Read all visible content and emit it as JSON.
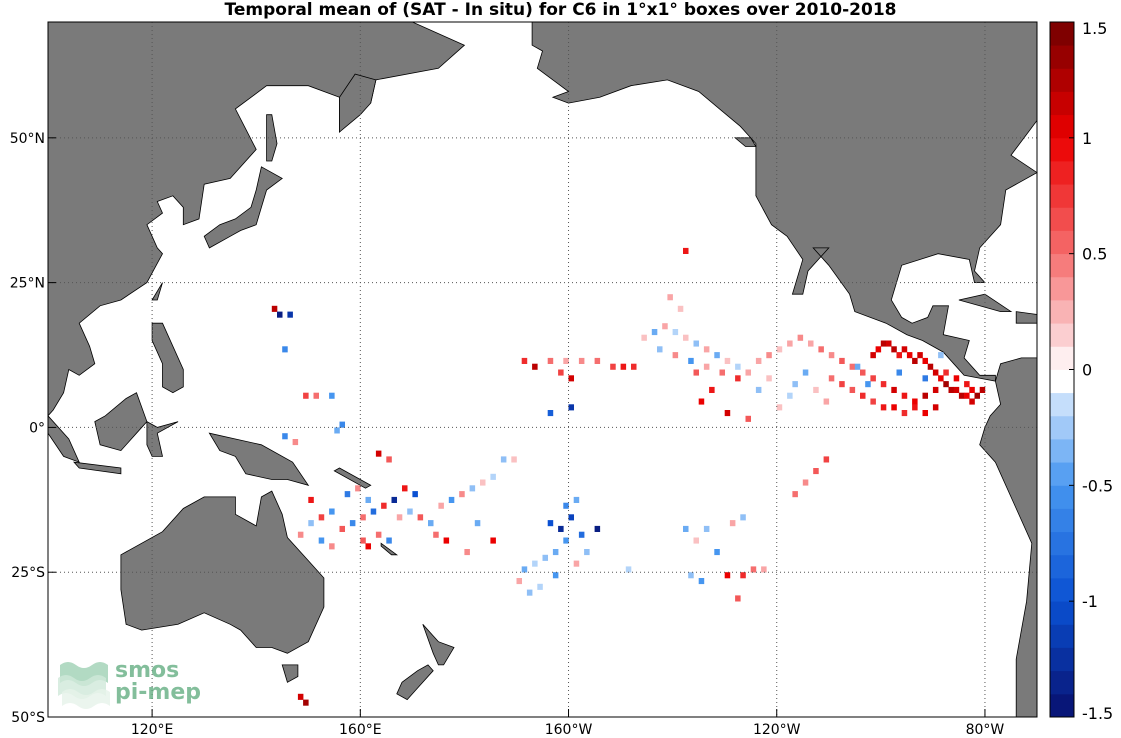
{
  "title": "Temporal mean of (SAT - In situ) for C6 in 1°x1° boxes over 2010-2018",
  "watermark": {
    "line1": "smos",
    "line2": "pi-mep",
    "color": "#5aa97a"
  },
  "colors": {
    "land": "#7a7a7a",
    "ocean": "#ffffff",
    "grid": "#555555"
  },
  "chart_data": {
    "type": "heatmap",
    "title": "Temporal mean of (SAT - In situ) for C6 in 1°x1° boxes over 2010-2018",
    "xlabel": "",
    "ylabel": "",
    "x_ticks": [
      {
        "value": 120,
        "label": "120°E"
      },
      {
        "value": 160,
        "label": "160°E"
      },
      {
        "value": 200,
        "label": "160°W"
      },
      {
        "value": 240,
        "label": "120°W"
      },
      {
        "value": 280,
        "label": "80°W"
      }
    ],
    "y_ticks": [
      {
        "value": 50,
        "label": "50°N"
      },
      {
        "value": 25,
        "label": "25°N"
      },
      {
        "value": 0,
        "label": "0°"
      },
      {
        "value": -25,
        "label": "25°S"
      },
      {
        "value": -50,
        "label": "50°S"
      }
    ],
    "xlim": [
      100,
      290
    ],
    "ylim": [
      -50,
      70
    ],
    "grid": true,
    "colorbar": {
      "vmin": -1.5,
      "vmax": 1.5,
      "step": 0.1,
      "ticks": [
        "1.5",
        "1",
        "0.5",
        "0",
        "-0.5",
        "-1",
        "-1.5"
      ],
      "tick_values": [
        1.5,
        1,
        0.5,
        0,
        -0.5,
        -1,
        -1.5
      ]
    },
    "cells": [
      {
        "lon": 258,
        "lat": 12,
        "v": 1.1
      },
      {
        "lon": 259,
        "lat": 13,
        "v": 1.0
      },
      {
        "lon": 260,
        "lat": 14,
        "v": 1.2
      },
      {
        "lon": 261,
        "lat": 14,
        "v": 1.1
      },
      {
        "lon": 262,
        "lat": 13,
        "v": 1.2
      },
      {
        "lon": 263,
        "lat": 12,
        "v": 0.9
      },
      {
        "lon": 264,
        "lat": 13,
        "v": 1.1
      },
      {
        "lon": 265,
        "lat": 12,
        "v": 1.0
      },
      {
        "lon": 266,
        "lat": 11,
        "v": 1.2
      },
      {
        "lon": 267,
        "lat": 12,
        "v": 1.1
      },
      {
        "lon": 268,
        "lat": 11,
        "v": 1.0
      },
      {
        "lon": 269,
        "lat": 10,
        "v": 1.2
      },
      {
        "lon": 270,
        "lat": 9,
        "v": 1.1
      },
      {
        "lon": 271,
        "lat": 8,
        "v": 1.0
      },
      {
        "lon": 272,
        "lat": 7,
        "v": 1.3
      },
      {
        "lon": 273,
        "lat": 6,
        "v": 1.2
      },
      {
        "lon": 274,
        "lat": 6,
        "v": 1.1
      },
      {
        "lon": 275,
        "lat": 5,
        "v": 1.2
      },
      {
        "lon": 276,
        "lat": 5,
        "v": 1.0
      },
      {
        "lon": 277,
        "lat": 4,
        "v": 1.1
      },
      {
        "lon": 278,
        "lat": 5,
        "v": 1.3
      },
      {
        "lon": 279,
        "lat": 6,
        "v": 1.2
      },
      {
        "lon": 277,
        "lat": 6,
        "v": 1.0
      },
      {
        "lon": 276,
        "lat": 7,
        "v": 0.9
      },
      {
        "lon": 274,
        "lat": 8,
        "v": 1.0
      },
      {
        "lon": 272,
        "lat": 9,
        "v": 0.8
      },
      {
        "lon": 270,
        "lat": 6,
        "v": 1.1
      },
      {
        "lon": 268,
        "lat": 5,
        "v": 1.2
      },
      {
        "lon": 266,
        "lat": 4,
        "v": 1.0
      },
      {
        "lon": 264,
        "lat": 5,
        "v": 0.9
      },
      {
        "lon": 262,
        "lat": 6,
        "v": 1.1
      },
      {
        "lon": 260,
        "lat": 7,
        "v": 0.8
      },
      {
        "lon": 258,
        "lat": 8,
        "v": 0.7
      },
      {
        "lon": 256,
        "lat": 9,
        "v": 0.6
      },
      {
        "lon": 254,
        "lat": 10,
        "v": 0.5
      },
      {
        "lon": 252,
        "lat": 11,
        "v": 0.6
      },
      {
        "lon": 250,
        "lat": 12,
        "v": 0.4
      },
      {
        "lon": 248,
        "lat": 13,
        "v": 0.5
      },
      {
        "lon": 246,
        "lat": 14,
        "v": 0.3
      },
      {
        "lon": 244,
        "lat": 15,
        "v": 0.4
      },
      {
        "lon": 242,
        "lat": 14,
        "v": 0.3
      },
      {
        "lon": 240,
        "lat": 13,
        "v": 0.2
      },
      {
        "lon": 238,
        "lat": 12,
        "v": 0.4
      },
      {
        "lon": 236,
        "lat": 11,
        "v": 0.3
      },
      {
        "lon": 250,
        "lat": 8,
        "v": 0.5
      },
      {
        "lon": 252,
        "lat": 7,
        "v": 0.7
      },
      {
        "lon": 254,
        "lat": 6,
        "v": 0.6
      },
      {
        "lon": 256,
        "lat": 5,
        "v": 0.8
      },
      {
        "lon": 258,
        "lat": 4,
        "v": 0.7
      },
      {
        "lon": 260,
        "lat": 3,
        "v": 0.9
      },
      {
        "lon": 262,
        "lat": 3,
        "v": 1.0
      },
      {
        "lon": 264,
        "lat": 2,
        "v": 0.8
      },
      {
        "lon": 266,
        "lat": 3,
        "v": 0.9
      },
      {
        "lon": 268,
        "lat": 2,
        "v": 1.0
      },
      {
        "lon": 270,
        "lat": 3,
        "v": 1.1
      },
      {
        "lon": 255,
        "lat": 10,
        "v": -0.4
      },
      {
        "lon": 257,
        "lat": 7,
        "v": -0.5
      },
      {
        "lon": 263,
        "lat": 9,
        "v": -0.6
      },
      {
        "lon": 268,
        "lat": 8,
        "v": -0.7
      },
      {
        "lon": 271,
        "lat": 12,
        "v": -0.3
      },
      {
        "lon": 245,
        "lat": 9,
        "v": -0.4
      },
      {
        "lon": 243,
        "lat": 7,
        "v": -0.3
      },
      {
        "lon": 247,
        "lat": 6,
        "v": 0.2
      },
      {
        "lon": 249,
        "lat": 4,
        "v": 0.3
      },
      {
        "lon": 240,
        "lat": 3,
        "v": 0.2
      },
      {
        "lon": 242,
        "lat": 5,
        "v": -0.2
      },
      {
        "lon": 238,
        "lat": 8,
        "v": 0.2
      },
      {
        "lon": 236,
        "lat": 6,
        "v": -0.3
      },
      {
        "lon": 234,
        "lat": 9,
        "v": 0.3
      },
      {
        "lon": 232,
        "lat": 10,
        "v": -0.2
      },
      {
        "lon": 230,
        "lat": 11,
        "v": 0.2
      },
      {
        "lon": 228,
        "lat": 12,
        "v": -0.4
      },
      {
        "lon": 226,
        "lat": 13,
        "v": 0.3
      },
      {
        "lon": 224,
        "lat": 14,
        "v": -0.3
      },
      {
        "lon": 222,
        "lat": 15,
        "v": 0.2
      },
      {
        "lon": 220,
        "lat": 16,
        "v": -0.2
      },
      {
        "lon": 218,
        "lat": 17,
        "v": 0.3
      },
      {
        "lon": 216,
        "lat": 16,
        "v": -0.4
      },
      {
        "lon": 214,
        "lat": 15,
        "v": 0.2
      },
      {
        "lon": 217,
        "lat": 13,
        "v": -0.3
      },
      {
        "lon": 220,
        "lat": 12,
        "v": 0.4
      },
      {
        "lon": 223,
        "lat": 11,
        "v": -0.5
      },
      {
        "lon": 226,
        "lat": 10,
        "v": 0.3
      },
      {
        "lon": 229,
        "lat": 9,
        "v": 0.5
      },
      {
        "lon": 232,
        "lat": 8,
        "v": 0.8
      },
      {
        "lon": 224,
        "lat": 9,
        "v": 0.6
      },
      {
        "lon": 221,
        "lat": 20,
        "v": 0.2
      },
      {
        "lon": 219,
        "lat": 22,
        "v": 0.3
      },
      {
        "lon": 222,
        "lat": 30,
        "v": 0.9
      },
      {
        "lon": 212,
        "lat": 10,
        "v": 0.8
      },
      {
        "lon": 210,
        "lat": 10,
        "v": 0.9
      },
      {
        "lon": 208,
        "lat": 10,
        "v": 0.7
      },
      {
        "lon": 205,
        "lat": 11,
        "v": 0.5
      },
      {
        "lon": 202,
        "lat": 11,
        "v": 0.4
      },
      {
        "lon": 199,
        "lat": 11,
        "v": 0.3
      },
      {
        "lon": 196,
        "lat": 11,
        "v": 0.5
      },
      {
        "lon": 193,
        "lat": 10,
        "v": 1.2
      },
      {
        "lon": 191,
        "lat": 11,
        "v": 0.8
      },
      {
        "lon": 200,
        "lat": 8,
        "v": 1.1
      },
      {
        "lon": 198,
        "lat": 9,
        "v": 0.7
      },
      {
        "lon": 200,
        "lat": 3,
        "v": -1.2
      },
      {
        "lon": 196,
        "lat": 2,
        "v": -0.9
      },
      {
        "lon": 227,
        "lat": 6,
        "v": 0.9
      },
      {
        "lon": 225,
        "lat": 4,
        "v": 1.0
      },
      {
        "lon": 230,
        "lat": 2,
        "v": 1.1
      },
      {
        "lon": 234,
        "lat": 1,
        "v": 0.6
      },
      {
        "lon": 249,
        "lat": -6,
        "v": 0.7
      },
      {
        "lon": 247,
        "lat": -8,
        "v": 0.6
      },
      {
        "lon": 245,
        "lat": -10,
        "v": 0.4
      },
      {
        "lon": 243,
        "lat": -12,
        "v": 0.5
      },
      {
        "lon": 233,
        "lat": -16,
        "v": -0.3
      },
      {
        "lon": 231,
        "lat": -17,
        "v": 0.3
      },
      {
        "lon": 226,
        "lat": -18,
        "v": -0.3
      },
      {
        "lon": 224,
        "lat": -20,
        "v": 0.2
      },
      {
        "lon": 222,
        "lat": -18,
        "v": -0.4
      },
      {
        "lon": 228,
        "lat": -22,
        "v": -0.5
      },
      {
        "lon": 230,
        "lat": -26,
        "v": 1.0
      },
      {
        "lon": 233,
        "lat": -26,
        "v": 0.8
      },
      {
        "lon": 235,
        "lat": -25,
        "v": 0.5
      },
      {
        "lon": 237,
        "lat": -25,
        "v": 0.3
      },
      {
        "lon": 223,
        "lat": -26,
        "v": -0.3
      },
      {
        "lon": 225,
        "lat": -27,
        "v": -0.5
      },
      {
        "lon": 232,
        "lat": -30,
        "v": 0.6
      },
      {
        "lon": 196,
        "lat": -17,
        "v": -1.0
      },
      {
        "lon": 198,
        "lat": -18,
        "v": -1.3
      },
      {
        "lon": 200,
        "lat": -16,
        "v": -1.1
      },
      {
        "lon": 202,
        "lat": -19,
        "v": -0.8
      },
      {
        "lon": 199,
        "lat": -20,
        "v": -0.5
      },
      {
        "lon": 197,
        "lat": -22,
        "v": -0.4
      },
      {
        "lon": 195,
        "lat": -23,
        "v": -0.3
      },
      {
        "lon": 193,
        "lat": -24,
        "v": -0.2
      },
      {
        "lon": 191,
        "lat": -25,
        "v": -0.4
      },
      {
        "lon": 190,
        "lat": -27,
        "v": 0.3
      },
      {
        "lon": 192,
        "lat": -29,
        "v": -0.3
      },
      {
        "lon": 194,
        "lat": -28,
        "v": -0.2
      },
      {
        "lon": 197,
        "lat": -26,
        "v": -0.5
      },
      {
        "lon": 199,
        "lat": -14,
        "v": -0.6
      },
      {
        "lon": 201,
        "lat": -13,
        "v": -0.4
      },
      {
        "lon": 205,
        "lat": -18,
        "v": -1.4
      },
      {
        "lon": 203,
        "lat": -22,
        "v": -0.3
      },
      {
        "lon": 211,
        "lat": -25,
        "v": -0.2
      },
      {
        "lon": 201,
        "lat": -24,
        "v": 0.3
      },
      {
        "lon": 168,
        "lat": -11,
        "v": 0.9
      },
      {
        "lon": 170,
        "lat": -12,
        "v": -1.0
      },
      {
        "lon": 166,
        "lat": -13,
        "v": -1.3
      },
      {
        "lon": 164,
        "lat": -14,
        "v": 0.8
      },
      {
        "lon": 162,
        "lat": -15,
        "v": -0.8
      },
      {
        "lon": 160,
        "lat": -16,
        "v": 0.5
      },
      {
        "lon": 158,
        "lat": -17,
        "v": -0.6
      },
      {
        "lon": 156,
        "lat": -18,
        "v": 0.6
      },
      {
        "lon": 154,
        "lat": -15,
        "v": -0.5
      },
      {
        "lon": 152,
        "lat": -16,
        "v": 0.7
      },
      {
        "lon": 150,
        "lat": -17,
        "v": -0.3
      },
      {
        "lon": 148,
        "lat": -19,
        "v": 0.4
      },
      {
        "lon": 150,
        "lat": -13,
        "v": 0.9
      },
      {
        "lon": 157,
        "lat": -12,
        "v": -0.7
      },
      {
        "lon": 159,
        "lat": -11,
        "v": 0.4
      },
      {
        "lon": 161,
        "lat": -13,
        "v": -0.4
      },
      {
        "lon": 163,
        "lat": -19,
        "v": 0.5
      },
      {
        "lon": 165,
        "lat": -20,
        "v": -0.6
      },
      {
        "lon": 167,
        "lat": -16,
        "v": 0.3
      },
      {
        "lon": 169,
        "lat": -15,
        "v": -0.3
      },
      {
        "lon": 171,
        "lat": -16,
        "v": 0.6
      },
      {
        "lon": 173,
        "lat": -17,
        "v": -0.4
      },
      {
        "lon": 175,
        "lat": -14,
        "v": 0.3
      },
      {
        "lon": 177,
        "lat": -13,
        "v": -0.5
      },
      {
        "lon": 179,
        "lat": -12,
        "v": 0.4
      },
      {
        "lon": 181,
        "lat": -11,
        "v": -0.3
      },
      {
        "lon": 183,
        "lat": -10,
        "v": 0.2
      },
      {
        "lon": 185,
        "lat": -9,
        "v": -0.2
      },
      {
        "lon": 187,
        "lat": -6,
        "v": -0.3
      },
      {
        "lon": 189,
        "lat": -6,
        "v": 0.2
      },
      {
        "lon": 174,
        "lat": -19,
        "v": 0.5
      },
      {
        "lon": 176,
        "lat": -20,
        "v": 1.0
      },
      {
        "lon": 160,
        "lat": -20,
        "v": 0.6
      },
      {
        "lon": 161,
        "lat": -21,
        "v": 1.0
      },
      {
        "lon": 154,
        "lat": -21,
        "v": 0.4
      },
      {
        "lon": 152,
        "lat": -20,
        "v": -0.5
      },
      {
        "lon": 155,
        "lat": -1,
        "v": -0.4
      },
      {
        "lon": 156,
        "lat": 0,
        "v": -0.6
      },
      {
        "lon": 149,
        "lat": 5,
        "v": 0.7
      },
      {
        "lon": 151,
        "lat": 5,
        "v": 0.5
      },
      {
        "lon": 154,
        "lat": 5,
        "v": -0.5
      },
      {
        "lon": 163,
        "lat": -5,
        "v": 1.1
      },
      {
        "lon": 165,
        "lat": -6,
        "v": 0.6
      },
      {
        "lon": 145,
        "lat": -2,
        "v": -0.6
      },
      {
        "lon": 147,
        "lat": -3,
        "v": 0.4
      },
      {
        "lon": 185,
        "lat": -20,
        "v": 1.0
      },
      {
        "lon": 180,
        "lat": -22,
        "v": 0.4
      },
      {
        "lon": 182,
        "lat": -17,
        "v": -0.4
      },
      {
        "lon": 143,
        "lat": 20,
        "v": 1.2
      },
      {
        "lon": 144,
        "lat": 19,
        "v": -1.4
      },
      {
        "lon": 146,
        "lat": 19,
        "v": -1.2
      },
      {
        "lon": 145,
        "lat": 13,
        "v": -0.6
      },
      {
        "lon": 149,
        "lat": -48,
        "v": 1.3
      },
      {
        "lon": 148,
        "lat": -47,
        "v": 1.1
      }
    ]
  }
}
